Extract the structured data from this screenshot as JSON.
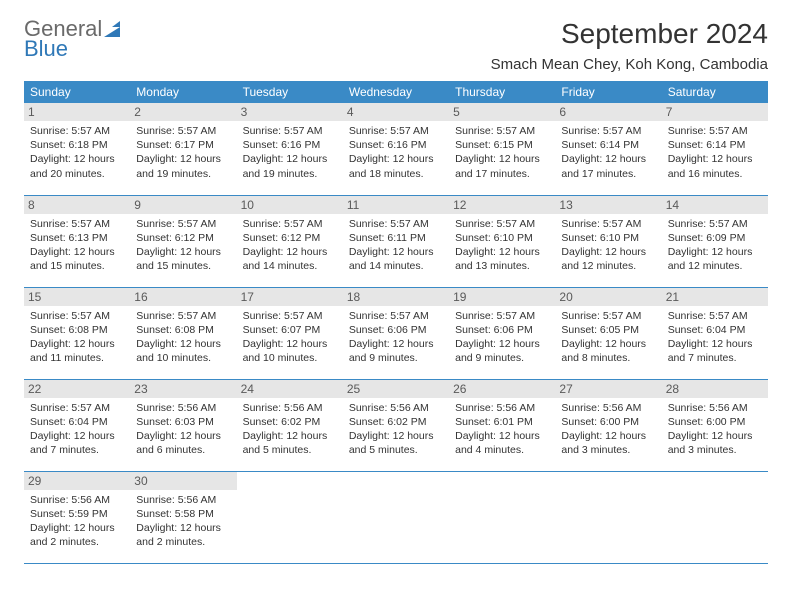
{
  "logo": {
    "line1": "General",
    "line2": "Blue"
  },
  "title": "September 2024",
  "location": "Smach Mean Chey, Koh Kong, Cambodia",
  "colors": {
    "header_bg": "#3a8ac6",
    "day_number_bg": "#e6e6e6",
    "divider": "#3a8ac6",
    "logo_gray": "#6a6a6a",
    "logo_blue": "#2f78b7"
  },
  "weekdays": [
    "Sunday",
    "Monday",
    "Tuesday",
    "Wednesday",
    "Thursday",
    "Friday",
    "Saturday"
  ],
  "days": [
    {
      "n": 1,
      "sunrise": "5:57 AM",
      "sunset": "6:18 PM",
      "daylight": "12 hours and 20 minutes."
    },
    {
      "n": 2,
      "sunrise": "5:57 AM",
      "sunset": "6:17 PM",
      "daylight": "12 hours and 19 minutes."
    },
    {
      "n": 3,
      "sunrise": "5:57 AM",
      "sunset": "6:16 PM",
      "daylight": "12 hours and 19 minutes."
    },
    {
      "n": 4,
      "sunrise": "5:57 AM",
      "sunset": "6:16 PM",
      "daylight": "12 hours and 18 minutes."
    },
    {
      "n": 5,
      "sunrise": "5:57 AM",
      "sunset": "6:15 PM",
      "daylight": "12 hours and 17 minutes."
    },
    {
      "n": 6,
      "sunrise": "5:57 AM",
      "sunset": "6:14 PM",
      "daylight": "12 hours and 17 minutes."
    },
    {
      "n": 7,
      "sunrise": "5:57 AM",
      "sunset": "6:14 PM",
      "daylight": "12 hours and 16 minutes."
    },
    {
      "n": 8,
      "sunrise": "5:57 AM",
      "sunset": "6:13 PM",
      "daylight": "12 hours and 15 minutes."
    },
    {
      "n": 9,
      "sunrise": "5:57 AM",
      "sunset": "6:12 PM",
      "daylight": "12 hours and 15 minutes."
    },
    {
      "n": 10,
      "sunrise": "5:57 AM",
      "sunset": "6:12 PM",
      "daylight": "12 hours and 14 minutes."
    },
    {
      "n": 11,
      "sunrise": "5:57 AM",
      "sunset": "6:11 PM",
      "daylight": "12 hours and 14 minutes."
    },
    {
      "n": 12,
      "sunrise": "5:57 AM",
      "sunset": "6:10 PM",
      "daylight": "12 hours and 13 minutes."
    },
    {
      "n": 13,
      "sunrise": "5:57 AM",
      "sunset": "6:10 PM",
      "daylight": "12 hours and 12 minutes."
    },
    {
      "n": 14,
      "sunrise": "5:57 AM",
      "sunset": "6:09 PM",
      "daylight": "12 hours and 12 minutes."
    },
    {
      "n": 15,
      "sunrise": "5:57 AM",
      "sunset": "6:08 PM",
      "daylight": "12 hours and 11 minutes."
    },
    {
      "n": 16,
      "sunrise": "5:57 AM",
      "sunset": "6:08 PM",
      "daylight": "12 hours and 10 minutes."
    },
    {
      "n": 17,
      "sunrise": "5:57 AM",
      "sunset": "6:07 PM",
      "daylight": "12 hours and 10 minutes."
    },
    {
      "n": 18,
      "sunrise": "5:57 AM",
      "sunset": "6:06 PM",
      "daylight": "12 hours and 9 minutes."
    },
    {
      "n": 19,
      "sunrise": "5:57 AM",
      "sunset": "6:06 PM",
      "daylight": "12 hours and 9 minutes."
    },
    {
      "n": 20,
      "sunrise": "5:57 AM",
      "sunset": "6:05 PM",
      "daylight": "12 hours and 8 minutes."
    },
    {
      "n": 21,
      "sunrise": "5:57 AM",
      "sunset": "6:04 PM",
      "daylight": "12 hours and 7 minutes."
    },
    {
      "n": 22,
      "sunrise": "5:57 AM",
      "sunset": "6:04 PM",
      "daylight": "12 hours and 7 minutes."
    },
    {
      "n": 23,
      "sunrise": "5:56 AM",
      "sunset": "6:03 PM",
      "daylight": "12 hours and 6 minutes."
    },
    {
      "n": 24,
      "sunrise": "5:56 AM",
      "sunset": "6:02 PM",
      "daylight": "12 hours and 5 minutes."
    },
    {
      "n": 25,
      "sunrise": "5:56 AM",
      "sunset": "6:02 PM",
      "daylight": "12 hours and 5 minutes."
    },
    {
      "n": 26,
      "sunrise": "5:56 AM",
      "sunset": "6:01 PM",
      "daylight": "12 hours and 4 minutes."
    },
    {
      "n": 27,
      "sunrise": "5:56 AM",
      "sunset": "6:00 PM",
      "daylight": "12 hours and 3 minutes."
    },
    {
      "n": 28,
      "sunrise": "5:56 AM",
      "sunset": "6:00 PM",
      "daylight": "12 hours and 3 minutes."
    },
    {
      "n": 29,
      "sunrise": "5:56 AM",
      "sunset": "5:59 PM",
      "daylight": "12 hours and 2 minutes."
    },
    {
      "n": 30,
      "sunrise": "5:56 AM",
      "sunset": "5:58 PM",
      "daylight": "12 hours and 2 minutes."
    }
  ],
  "labels": {
    "sunrise": "Sunrise:",
    "sunset": "Sunset:",
    "daylight": "Daylight:"
  },
  "layout": {
    "start_weekday_index": 0,
    "total_cells": 35
  }
}
